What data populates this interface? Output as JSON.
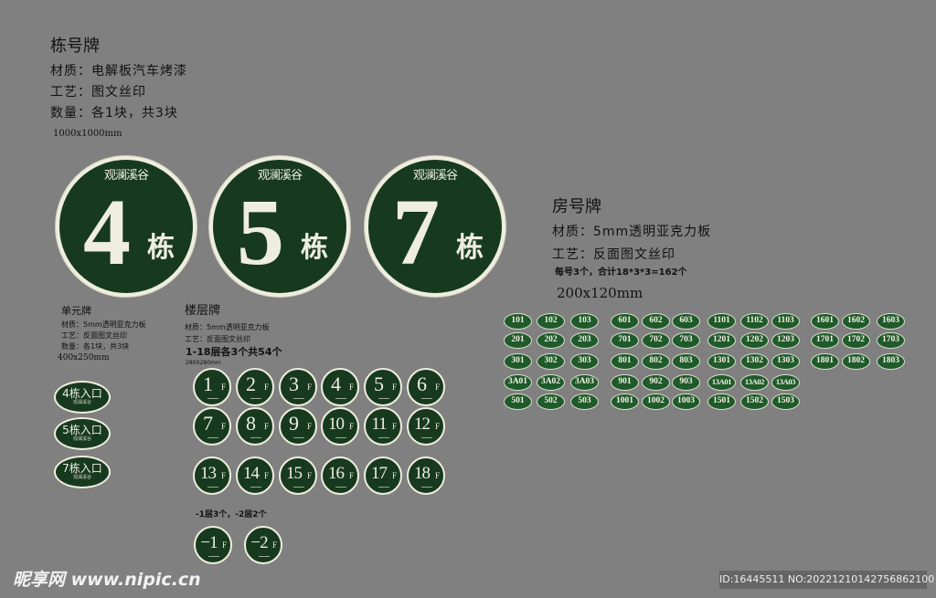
{
  "building_plates": {
    "title": "栋号牌",
    "material": "材质：电解板汽车烤漆",
    "process": "工艺：图文丝印",
    "quantity": "数量：各1块，共3块",
    "size": "1000x1000mm",
    "logo": "观澜溪谷",
    "suffix": "栋",
    "numbers": [
      "4",
      "5",
      "7"
    ]
  },
  "unit_plates": {
    "title": "单元牌",
    "material": "材质：5mm透明亚克力板",
    "process": "工艺：反面图文丝印",
    "quantity": "数量：各1块，共3块",
    "size": "400x250mm",
    "labels": [
      "4栋入口",
      "5栋入口",
      "7栋入口"
    ],
    "logo": "观澜溪谷"
  },
  "floor_plates": {
    "title": "楼层牌",
    "material": "材质：5mm透明亚克力板",
    "process": "工艺：反面图文丝印",
    "quantity": "1-18层各3个共54个",
    "size": "280X280mm",
    "floors": [
      "1",
      "2",
      "3",
      "4",
      "5",
      "6",
      "7",
      "8",
      "9",
      "10",
      "11",
      "12",
      "13",
      "14",
      "15",
      "16",
      "17",
      "18"
    ],
    "suffix": "F",
    "basement_note": "-1层3个，-2层2个",
    "basement": [
      "−1",
      "−2"
    ]
  },
  "room_plates": {
    "title": "房号牌",
    "material": "材质：5mm透明亚克力板",
    "process": "工艺：反面图文丝印",
    "quantity": "每号3个，合计18*3*3=162个",
    "size": "200x120mm",
    "groups": [
      [
        [
          "101",
          "102",
          "103"
        ],
        [
          "201",
          "202",
          "203"
        ],
        [
          "301",
          "302",
          "303"
        ],
        [
          "3A01",
          "3A02",
          "3A03"
        ],
        [
          "501",
          "502",
          "503"
        ]
      ],
      [
        [
          "601",
          "602",
          "603"
        ],
        [
          "701",
          "702",
          "703"
        ],
        [
          "801",
          "802",
          "803"
        ],
        [
          "901",
          "902",
          "903"
        ],
        [
          "1001",
          "1002",
          "1003"
        ]
      ],
      [
        [
          "1101",
          "1102",
          "1103"
        ],
        [
          "1201",
          "1202",
          "1203"
        ],
        [
          "1301",
          "1302",
          "1303"
        ],
        [
          "13A01",
          "13A02",
          "13A03"
        ],
        [
          "1501",
          "1502",
          "1503"
        ]
      ],
      [
        [
          "1601",
          "1602",
          "1603"
        ],
        [
          "1701",
          "1702",
          "1703"
        ],
        [
          "1801",
          "1802",
          "1803"
        ]
      ]
    ]
  },
  "watermark": {
    "site": "昵享网 www.nipic.cn",
    "id": "ID:16445511 NO:20221210142756862100"
  },
  "colors": {
    "background": "#808080",
    "plate_green": "#173a1e",
    "room_green": "#1f5a2a",
    "cream": "#efeede"
  }
}
